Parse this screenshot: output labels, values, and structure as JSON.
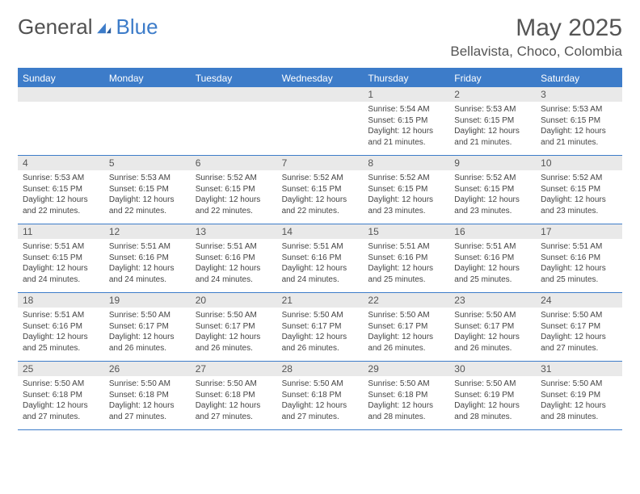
{
  "logo": {
    "text1": "General",
    "text2": "Blue"
  },
  "title": "May 2025",
  "location": "Bellavista, Choco, Colombia",
  "colors": {
    "accent": "#3d7cc9",
    "daynum_bg": "#e9e9e9",
    "text": "#444444",
    "header_text": "#555555"
  },
  "weekdays": [
    "Sunday",
    "Monday",
    "Tuesday",
    "Wednesday",
    "Thursday",
    "Friday",
    "Saturday"
  ],
  "weeks": [
    [
      {
        "num": "",
        "sunrise": "",
        "sunset": "",
        "daylight": ""
      },
      {
        "num": "",
        "sunrise": "",
        "sunset": "",
        "daylight": ""
      },
      {
        "num": "",
        "sunrise": "",
        "sunset": "",
        "daylight": ""
      },
      {
        "num": "",
        "sunrise": "",
        "sunset": "",
        "daylight": ""
      },
      {
        "num": "1",
        "sunrise": "Sunrise: 5:54 AM",
        "sunset": "Sunset: 6:15 PM",
        "daylight": "Daylight: 12 hours and 21 minutes."
      },
      {
        "num": "2",
        "sunrise": "Sunrise: 5:53 AM",
        "sunset": "Sunset: 6:15 PM",
        "daylight": "Daylight: 12 hours and 21 minutes."
      },
      {
        "num": "3",
        "sunrise": "Sunrise: 5:53 AM",
        "sunset": "Sunset: 6:15 PM",
        "daylight": "Daylight: 12 hours and 21 minutes."
      }
    ],
    [
      {
        "num": "4",
        "sunrise": "Sunrise: 5:53 AM",
        "sunset": "Sunset: 6:15 PM",
        "daylight": "Daylight: 12 hours and 22 minutes."
      },
      {
        "num": "5",
        "sunrise": "Sunrise: 5:53 AM",
        "sunset": "Sunset: 6:15 PM",
        "daylight": "Daylight: 12 hours and 22 minutes."
      },
      {
        "num": "6",
        "sunrise": "Sunrise: 5:52 AM",
        "sunset": "Sunset: 6:15 PM",
        "daylight": "Daylight: 12 hours and 22 minutes."
      },
      {
        "num": "7",
        "sunrise": "Sunrise: 5:52 AM",
        "sunset": "Sunset: 6:15 PM",
        "daylight": "Daylight: 12 hours and 22 minutes."
      },
      {
        "num": "8",
        "sunrise": "Sunrise: 5:52 AM",
        "sunset": "Sunset: 6:15 PM",
        "daylight": "Daylight: 12 hours and 23 minutes."
      },
      {
        "num": "9",
        "sunrise": "Sunrise: 5:52 AM",
        "sunset": "Sunset: 6:15 PM",
        "daylight": "Daylight: 12 hours and 23 minutes."
      },
      {
        "num": "10",
        "sunrise": "Sunrise: 5:52 AM",
        "sunset": "Sunset: 6:15 PM",
        "daylight": "Daylight: 12 hours and 23 minutes."
      }
    ],
    [
      {
        "num": "11",
        "sunrise": "Sunrise: 5:51 AM",
        "sunset": "Sunset: 6:15 PM",
        "daylight": "Daylight: 12 hours and 24 minutes."
      },
      {
        "num": "12",
        "sunrise": "Sunrise: 5:51 AM",
        "sunset": "Sunset: 6:16 PM",
        "daylight": "Daylight: 12 hours and 24 minutes."
      },
      {
        "num": "13",
        "sunrise": "Sunrise: 5:51 AM",
        "sunset": "Sunset: 6:16 PM",
        "daylight": "Daylight: 12 hours and 24 minutes."
      },
      {
        "num": "14",
        "sunrise": "Sunrise: 5:51 AM",
        "sunset": "Sunset: 6:16 PM",
        "daylight": "Daylight: 12 hours and 24 minutes."
      },
      {
        "num": "15",
        "sunrise": "Sunrise: 5:51 AM",
        "sunset": "Sunset: 6:16 PM",
        "daylight": "Daylight: 12 hours and 25 minutes."
      },
      {
        "num": "16",
        "sunrise": "Sunrise: 5:51 AM",
        "sunset": "Sunset: 6:16 PM",
        "daylight": "Daylight: 12 hours and 25 minutes."
      },
      {
        "num": "17",
        "sunrise": "Sunrise: 5:51 AM",
        "sunset": "Sunset: 6:16 PM",
        "daylight": "Daylight: 12 hours and 25 minutes."
      }
    ],
    [
      {
        "num": "18",
        "sunrise": "Sunrise: 5:51 AM",
        "sunset": "Sunset: 6:16 PM",
        "daylight": "Daylight: 12 hours and 25 minutes."
      },
      {
        "num": "19",
        "sunrise": "Sunrise: 5:50 AM",
        "sunset": "Sunset: 6:17 PM",
        "daylight": "Daylight: 12 hours and 26 minutes."
      },
      {
        "num": "20",
        "sunrise": "Sunrise: 5:50 AM",
        "sunset": "Sunset: 6:17 PM",
        "daylight": "Daylight: 12 hours and 26 minutes."
      },
      {
        "num": "21",
        "sunrise": "Sunrise: 5:50 AM",
        "sunset": "Sunset: 6:17 PM",
        "daylight": "Daylight: 12 hours and 26 minutes."
      },
      {
        "num": "22",
        "sunrise": "Sunrise: 5:50 AM",
        "sunset": "Sunset: 6:17 PM",
        "daylight": "Daylight: 12 hours and 26 minutes."
      },
      {
        "num": "23",
        "sunrise": "Sunrise: 5:50 AM",
        "sunset": "Sunset: 6:17 PM",
        "daylight": "Daylight: 12 hours and 26 minutes."
      },
      {
        "num": "24",
        "sunrise": "Sunrise: 5:50 AM",
        "sunset": "Sunset: 6:17 PM",
        "daylight": "Daylight: 12 hours and 27 minutes."
      }
    ],
    [
      {
        "num": "25",
        "sunrise": "Sunrise: 5:50 AM",
        "sunset": "Sunset: 6:18 PM",
        "daylight": "Daylight: 12 hours and 27 minutes."
      },
      {
        "num": "26",
        "sunrise": "Sunrise: 5:50 AM",
        "sunset": "Sunset: 6:18 PM",
        "daylight": "Daylight: 12 hours and 27 minutes."
      },
      {
        "num": "27",
        "sunrise": "Sunrise: 5:50 AM",
        "sunset": "Sunset: 6:18 PM",
        "daylight": "Daylight: 12 hours and 27 minutes."
      },
      {
        "num": "28",
        "sunrise": "Sunrise: 5:50 AM",
        "sunset": "Sunset: 6:18 PM",
        "daylight": "Daylight: 12 hours and 27 minutes."
      },
      {
        "num": "29",
        "sunrise": "Sunrise: 5:50 AM",
        "sunset": "Sunset: 6:18 PM",
        "daylight": "Daylight: 12 hours and 28 minutes."
      },
      {
        "num": "30",
        "sunrise": "Sunrise: 5:50 AM",
        "sunset": "Sunset: 6:19 PM",
        "daylight": "Daylight: 12 hours and 28 minutes."
      },
      {
        "num": "31",
        "sunrise": "Sunrise: 5:50 AM",
        "sunset": "Sunset: 6:19 PM",
        "daylight": "Daylight: 12 hours and 28 minutes."
      }
    ]
  ]
}
